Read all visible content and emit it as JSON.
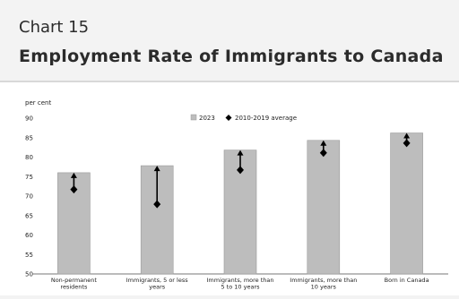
{
  "header": {
    "chart_number": "Chart 15",
    "title": "Employment Rate of Immigrants to Canada"
  },
  "chart_data": {
    "type": "bar",
    "ylabel": "per cent",
    "ylim": [
      50,
      90
    ],
    "yticks": [
      50,
      55,
      60,
      65,
      70,
      75,
      80,
      85,
      90
    ],
    "categories": [
      "Non-permanent residents",
      "Immigrants, 5 or less years",
      "Immigrants, more than 5 to 10 years",
      "Immigrants, more than 10 years",
      "Born in Canada"
    ],
    "series": [
      {
        "name": "2023",
        "values": [
          76.0,
          77.8,
          81.8,
          84.3,
          86.2
        ]
      },
      {
        "name": "2010-2019 average",
        "values": [
          71.7,
          67.9,
          76.7,
          81.1,
          83.6
        ]
      }
    ],
    "legend_position": "top-center",
    "colors": {
      "bar": "#bdbdbd",
      "bar_edge": "#9a9a9a",
      "arrow": "#000000",
      "text": "#222222"
    }
  }
}
